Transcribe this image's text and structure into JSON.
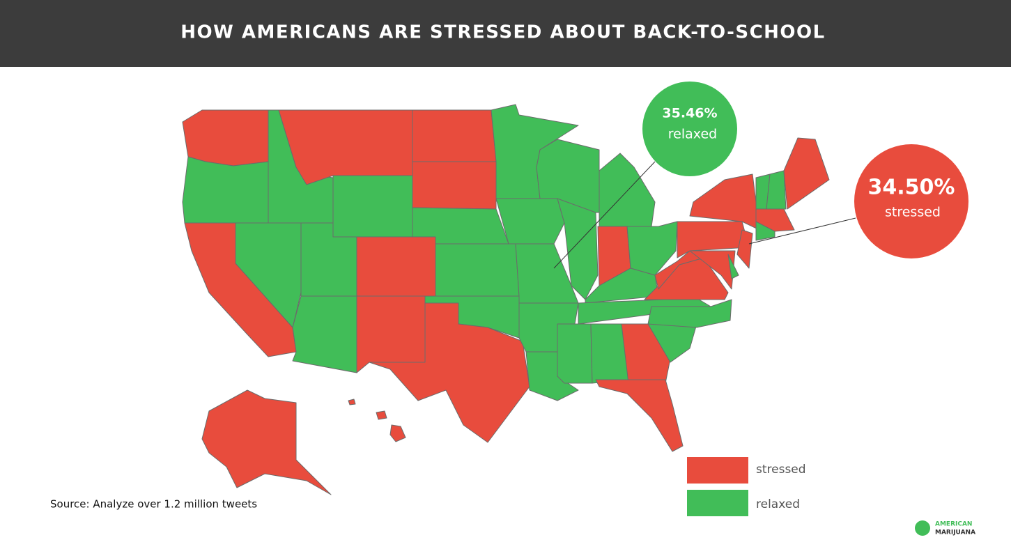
{
  "header": {
    "title": "HOW AMERICANS ARE STRESSED ABOUT BACK-TO-SCHOOL"
  },
  "callouts": [
    {
      "value": "35.46%",
      "label": "relaxed",
      "color": "#41bd58"
    },
    {
      "value": "34.50%",
      "label": "stressed",
      "color": "#e84c3d"
    }
  ],
  "legend": [
    {
      "label": "stressed",
      "color": "#e84c3d"
    },
    {
      "label": "relaxed",
      "color": "#41bd58"
    }
  ],
  "source": "Source: Analyze over 1.2 million tweets",
  "logo": {
    "line1": "AMERICAN",
    "line2": "MARIJUANA"
  }
}
